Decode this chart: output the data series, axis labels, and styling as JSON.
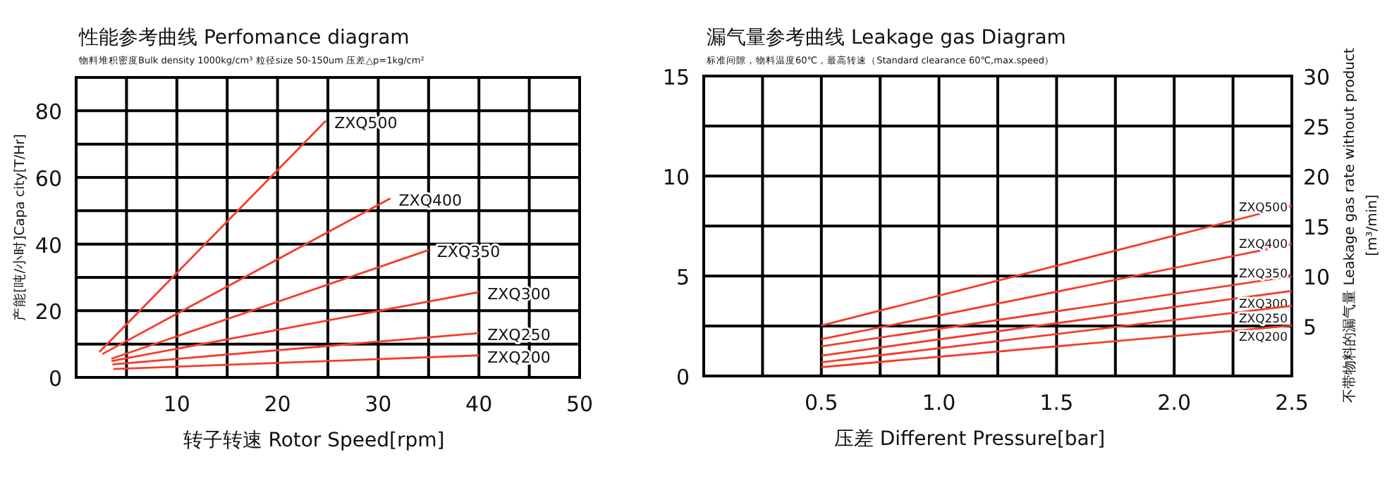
{
  "chart_data": [
    {
      "type": "line",
      "title": "性能参考曲线 Perfomance   diagram",
      "subtitle": "物料堆积密度Bulk density 1000kg/cm³  粒径size   50-150um     压差△p=1kg/cm²",
      "xlabel": "转子转速   Rotor Speed[rpm]",
      "ylabel": "产能[吨/小时]Capa city[T/Hr]",
      "xlim": [
        0,
        50
      ],
      "ylim": [
        0,
        90
      ],
      "xticks": [
        {
          "value": 5,
          "label": null
        },
        10,
        {
          "value": 15,
          "label": null
        },
        20,
        {
          "value": 25,
          "label": null
        },
        30,
        {
          "value": 35,
          "label": null
        },
        40,
        {
          "value": 45,
          "label": null
        },
        50
      ],
      "yticks": [
        0,
        {
          "value": 10,
          "label": null
        },
        20,
        {
          "value": 30,
          "label": null
        },
        40,
        {
          "value": 50,
          "label": null
        },
        60,
        {
          "value": 70,
          "label": null
        },
        80
      ],
      "grid": true,
      "series": [
        {
          "name": "ZXQ500",
          "color": "#f53c2c",
          "x": [
            2.3,
            24.8
          ],
          "values": [
            7.6,
            77
          ]
        },
        {
          "name": "ZXQ400",
          "color": "#f53c2c",
          "x": [
            2.6,
            31.2
          ],
          "values": [
            7,
            53.7
          ]
        },
        {
          "name": "ZXQ350",
          "color": "#f53c2c",
          "x": [
            3.5,
            35
          ],
          "values": [
            5.6,
            38.2
          ]
        },
        {
          "name": "ZXQ300",
          "color": "#f53c2c",
          "x": [
            3.5,
            40
          ],
          "values": [
            4.9,
            25.6
          ]
        },
        {
          "name": "ZXQ250",
          "color": "#f53c2c",
          "x": [
            3.6,
            40
          ],
          "values": [
            3.9,
            13.3
          ]
        },
        {
          "name": "ZXQ200",
          "color": "#f53c2c",
          "x": [
            3.7,
            40
          ],
          "values": [
            2.5,
            6.6
          ]
        }
      ]
    },
    {
      "type": "line",
      "title": "漏气量参考曲线 Leakage gas Diagram",
      "subtitle": "标准间隙，物料温度60℃，最高转速（Standard clearance 60℃,max.speed）",
      "xlabel": "压差  Different Pressure[bar]",
      "y2label": "不带物料的漏气量 Leakage gas rate without product [m³/min]",
      "xlim": [
        0,
        2.5
      ],
      "ylim": [
        0,
        15
      ],
      "y2lim": [
        0,
        30
      ],
      "xticks": [
        {
          "value": 0.25,
          "label": null
        },
        0.5,
        {
          "value": 0.75,
          "label": null
        },
        {
          "value": 1,
          "label": "1.0"
        },
        {
          "value": 1.25,
          "label": null
        },
        1.5,
        {
          "value": 1.75,
          "label": null
        },
        {
          "value": 2,
          "label": "2.0"
        },
        {
          "value": 2.25,
          "label": null
        },
        2.5
      ],
      "yticks": [
        0,
        5,
        10,
        15
      ],
      "y2ticks": [
        5,
        10,
        15,
        20,
        25,
        30
      ],
      "grid": true,
      "series": [
        {
          "name": "ZXQ500",
          "color": "#f53c2c",
          "x": [
            0.5,
            2.5
          ],
          "values": [
            2.52,
            8.52
          ]
        },
        {
          "name": "ZXQ400",
          "color": "#f53c2c",
          "x": [
            0.5,
            2.5
          ],
          "values": [
            1.84,
            6.59
          ]
        },
        {
          "name": "ZXQ350",
          "color": "#f53c2c",
          "x": [
            0.5,
            2.5
          ],
          "values": [
            1.48,
            4.99
          ]
        },
        {
          "name": "ZXQ300",
          "color": "#f53c2c",
          "x": [
            0.5,
            2.5
          ],
          "values": [
            1.02,
            4.26
          ]
        },
        {
          "name": "ZXQ250",
          "color": "#f53c2c",
          "x": [
            0.5,
            2.5
          ],
          "values": [
            0.68,
            3.51
          ]
        },
        {
          "name": "ZXQ200",
          "color": "#f53c2c",
          "x": [
            0.5,
            2.5
          ],
          "values": [
            0.44,
            2.52
          ]
        }
      ]
    }
  ]
}
